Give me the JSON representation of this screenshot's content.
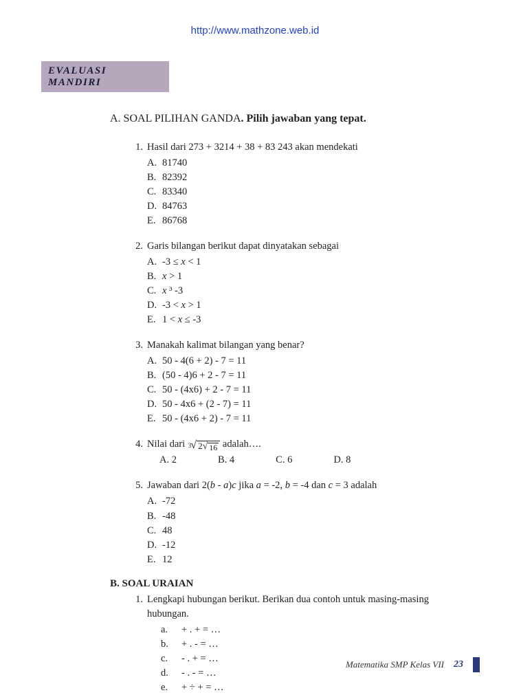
{
  "header": {
    "url": "http://www.mathzone.web.id"
  },
  "banner": "EVALUASI MANDIRI",
  "sectionA": {
    "prefix": "A. SOAL PILIHAN GANDA",
    "bold": ". Pilih jawaban yang tepat.",
    "questions": [
      {
        "num": "1.",
        "text": "Hasil dari 273 + 3214 + 38 + 83 243 akan mendekati",
        "opts": [
          {
            "label": "A.",
            "text": "81740"
          },
          {
            "label": "B.",
            "text": "82392"
          },
          {
            "label": "C.",
            "text": "83340"
          },
          {
            "label": "D.",
            "text": "84763"
          },
          {
            "label": "E.",
            "text": "86768"
          }
        ]
      },
      {
        "num": "2.",
        "text": "Garis bilangan berikut dapat dinyatakan sebagai",
        "opts_math": [
          {
            "label": "A.",
            "parts": [
              "-3 ≤ ",
              "x",
              " < 1"
            ]
          },
          {
            "label": "B.",
            "parts": [
              "",
              "x",
              " > 1"
            ]
          },
          {
            "label": "C.",
            "parts": [
              "",
              "x",
              " ³ -3"
            ]
          },
          {
            "label": "D.",
            "parts": [
              "-3 < ",
              "x",
              " > 1"
            ]
          },
          {
            "label": "E.",
            "parts": [
              "1 < ",
              "x",
              " ≤ -3"
            ]
          }
        ]
      },
      {
        "num": "3.",
        "text": " Manakah kalimat bilangan yang benar?",
        "opts": [
          {
            "label": "A.",
            "text": "50 - 4(6 + 2) - 7 = 11"
          },
          {
            "label": "B.",
            "text": "(50 - 4)6 + 2 - 7 = 11"
          },
          {
            "label": "C.",
            "text": "50 - (4x6) + 2 - 7 = 11"
          },
          {
            "label": "D.",
            "text": "50 - 4x6 + (2 - 7) = 11"
          },
          {
            "label": "E.",
            "text": "50 - (4x6 + 2) - 7 = 11"
          }
        ]
      },
      {
        "num": "4.",
        "text_before": "Nilai dari ",
        "rad_index": "3",
        "rad_outer_left": "2",
        "rad_inner": "16",
        "text_after": " adalah….",
        "horiz": [
          {
            "label": "A.",
            "text": "  2"
          },
          {
            "label": "B.",
            "text": "4"
          },
          {
            "label": "C.",
            "text": "6"
          },
          {
            "label": "D.",
            "text": "8"
          }
        ]
      },
      {
        "num": "5.",
        "text_parts": [
          "Jawaban dari 2(",
          "b",
          " - ",
          "a",
          ")",
          "c",
          " jika ",
          "a",
          " = -2, ",
          "b",
          " = -4 dan ",
          "c",
          " = 3 adalah"
        ],
        "opts": [
          {
            "label": "A.",
            "text": "-72"
          },
          {
            "label": "B.",
            "text": "-48"
          },
          {
            "label": "C.",
            "text": "48"
          },
          {
            "label": "D.",
            "text": "-12"
          },
          {
            "label": "E.",
            "text": "12"
          }
        ]
      }
    ]
  },
  "sectionB": {
    "title": "B. SOAL URAIAN",
    "q1": {
      "num": "1.",
      "text": "Lengkapi hubungan berikut.  Berikan dua contoh untuk masing-masing hubungan.",
      "subs": [
        {
          "label": "a.",
          "text": "+ . + = …"
        },
        {
          "label": "b.",
          "text": "+ . - = …"
        },
        {
          "label": "c.",
          "text": "- . + = …"
        },
        {
          "label": "d.",
          "text": "- . - = …"
        },
        {
          "label": "e.",
          "text": "+ ÷ + = …"
        }
      ]
    }
  },
  "footer": {
    "text": "Matematika SMP Kelas VII",
    "page": "23"
  },
  "colors": {
    "url": "#2244cc",
    "banner_bg": "#b5a8bc",
    "banner_text": "#1a1a3a",
    "footer_accent": "#2a3a7a",
    "page_bg": "#ffffff"
  },
  "fonts": {
    "body_family": "Georgia, serif",
    "body_size_pt": 11,
    "title_size_pt": 12
  }
}
